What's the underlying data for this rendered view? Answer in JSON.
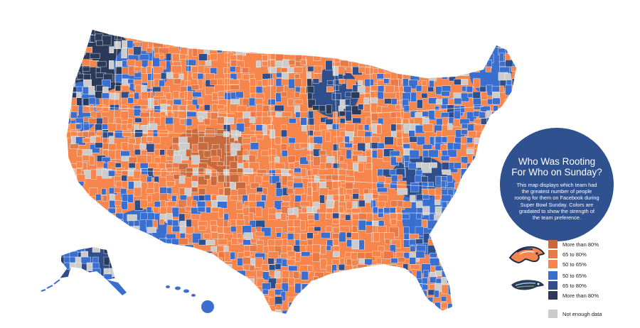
{
  "info": {
    "title_line1": "Who Was Rooting",
    "title_line2": "For Who on Sunday?",
    "text_line1": "This map displays which team had",
    "text_line2": "the greatest number of people",
    "text_line3": "rooting for them on Facebook during",
    "text_line4": "Super Bowl Sunday.  Colors are",
    "text_line5": "gradated to show the strength of",
    "text_line6": "the team preference."
  },
  "legend": {
    "broncos_logo_icon": "broncos-horse-icon",
    "seahawks_logo_icon": "seahawks-bird-icon",
    "items": [
      {
        "label": "More than 80%",
        "color": "#c86a3c"
      },
      {
        "label": "65 to 80%",
        "color": "#e77a47"
      },
      {
        "label": "50 to 65%",
        "color": "#f7864d"
      },
      {
        "label": "50 to 65%",
        "color": "#3a6fd0"
      },
      {
        "label": "65 to 80%",
        "color": "#2e4f8c"
      },
      {
        "label": "More than 80%",
        "color": "#2a3a58"
      },
      {
        "label": "Not enough data",
        "color": "#cccccc"
      }
    ]
  },
  "map_colors": {
    "broncos_strong": "#c86a3c",
    "broncos_mid": "#e77a47",
    "broncos_light": "#f7864d",
    "seahawks_light": "#3a6fd0",
    "seahawks_mid": "#2e4f8c",
    "seahawks_strong": "#2a3a58",
    "no_data": "#cccccc"
  }
}
